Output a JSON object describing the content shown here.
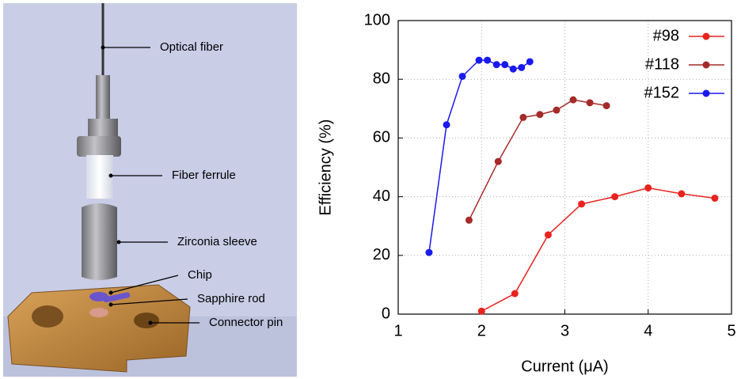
{
  "illustration": {
    "labels": [
      "Optical fiber",
      "Fiber ferrule",
      "Zirconia sleeve",
      "Chip",
      "Sapphire rod",
      "Connector pin"
    ]
  },
  "chart_data": {
    "type": "line",
    "x_label": "Current (μA)",
    "y_label": "Efficiency (%)",
    "xlim": [
      1,
      5
    ],
    "xticks": [
      1,
      2,
      3,
      4,
      5
    ],
    "ylim": [
      0,
      100
    ],
    "yticks": [
      0,
      20,
      40,
      60,
      80,
      100
    ],
    "grid": true,
    "legend": "upper right",
    "series": [
      {
        "name": "#98",
        "color": "#e8231e",
        "x": [
          2.0,
          2.4,
          2.8,
          3.2,
          3.6,
          4.0,
          4.4,
          4.8
        ],
        "values": [
          1,
          7,
          27,
          37.5,
          40,
          43,
          41,
          39.5
        ]
      },
      {
        "name": "#118",
        "color": "#a52a2a",
        "x": [
          1.85,
          2.2,
          2.5,
          2.7,
          2.9,
          3.1,
          3.3,
          3.5
        ],
        "values": [
          32,
          52,
          67,
          68,
          69.5,
          73,
          72,
          71
        ]
      },
      {
        "name": "#152",
        "color": "#1a1aee",
        "x": [
          1.37,
          1.58,
          1.77,
          1.97,
          2.07,
          2.18,
          2.28,
          2.38,
          2.48,
          2.58
        ],
        "values": [
          21,
          64.5,
          81,
          86.5,
          86.5,
          85,
          85,
          83.5,
          84,
          86
        ]
      }
    ]
  }
}
